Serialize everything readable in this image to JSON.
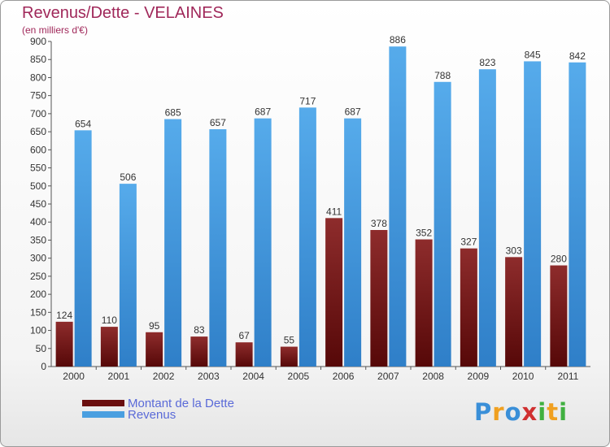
{
  "chart_data": {
    "type": "bar",
    "title": "Revenus/Dette - VELAINES",
    "subtitle": "(en milliers d'€)",
    "xlabel": "",
    "ylabel": "",
    "categories": [
      "2000",
      "2001",
      "2002",
      "2003",
      "2004",
      "2005",
      "2006",
      "2007",
      "2008",
      "2009",
      "2010",
      "2011"
    ],
    "series": [
      {
        "name": "Montant de la Dette",
        "color": "#7a1a1a",
        "values": [
          124,
          110,
          95,
          83,
          67,
          55,
          411,
          378,
          352,
          327,
          303,
          280
        ]
      },
      {
        "name": "Revenus",
        "color": "#4a9fe0",
        "values": [
          654,
          506,
          685,
          657,
          687,
          717,
          687,
          886,
          788,
          823,
          845,
          842
        ]
      }
    ],
    "ylim": [
      0,
      900
    ],
    "yticks": [
      0,
      50,
      100,
      150,
      200,
      250,
      300,
      350,
      400,
      450,
      500,
      550,
      600,
      650,
      700,
      750,
      800,
      850,
      900
    ],
    "grid": false,
    "legend": "bottom-left",
    "data_labels": true
  },
  "logo": {
    "letters": [
      "P",
      "r",
      "o",
      "x",
      "i",
      "t",
      "i"
    ],
    "colors": [
      "#3a8fd8",
      "#f0a020",
      "#3a8fd8",
      "#d03030",
      "#40b040",
      "#f0a020",
      "#40b040"
    ]
  }
}
